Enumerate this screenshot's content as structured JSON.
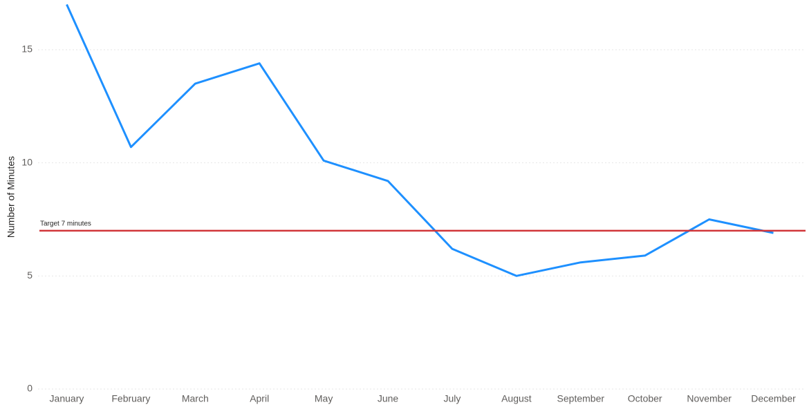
{
  "chart_data": {
    "type": "line",
    "y_axis_label": "Number of Minutes",
    "categories": [
      "January",
      "February",
      "March",
      "April",
      "May",
      "June",
      "July",
      "August",
      "September",
      "October",
      "November",
      "December"
    ],
    "series": [
      {
        "name": "Minutes",
        "color": "#1e90ff",
        "values": [
          17.0,
          10.7,
          13.5,
          14.4,
          10.1,
          9.2,
          6.2,
          5.0,
          5.6,
          5.9,
          7.5,
          6.9
        ]
      }
    ],
    "ylim": [
      0,
      17.2
    ],
    "yticks": [
      0,
      5,
      10,
      15
    ],
    "grid": true,
    "reference_line": {
      "value": 7,
      "label": "Target 7 minutes",
      "color": "#d13438"
    }
  }
}
